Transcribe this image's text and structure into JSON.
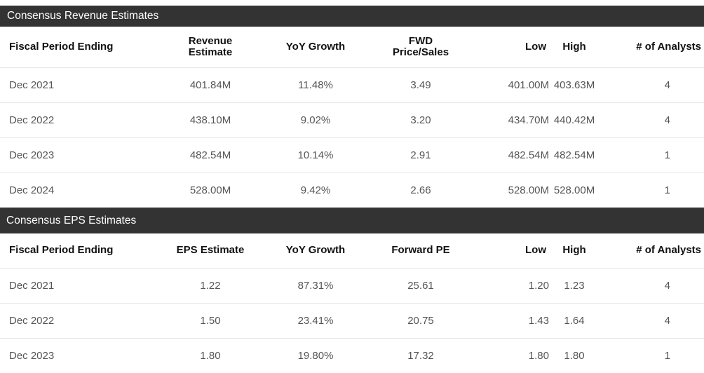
{
  "revenue": {
    "title": "Consensus Revenue Estimates",
    "headers": {
      "period": "Fiscal Period Ending",
      "estimate_line1": "Revenue",
      "estimate_line2": "Estimate",
      "yoy": "YoY Growth",
      "fwd_line1": "FWD",
      "fwd_line2": "Price/Sales",
      "low": "Low",
      "high": "High",
      "analysts": "# of Analysts"
    },
    "rows": [
      {
        "period": "Dec 2021",
        "estimate": "401.84M",
        "yoy": "11.48%",
        "fwd": "3.49",
        "low": "401.00M",
        "high": "403.63M",
        "analysts": "4"
      },
      {
        "period": "Dec 2022",
        "estimate": "438.10M",
        "yoy": "9.02%",
        "fwd": "3.20",
        "low": "434.70M",
        "high": "440.42M",
        "analysts": "4"
      },
      {
        "period": "Dec 2023",
        "estimate": "482.54M",
        "yoy": "10.14%",
        "fwd": "2.91",
        "low": "482.54M",
        "high": "482.54M",
        "analysts": "1"
      },
      {
        "period": "Dec 2024",
        "estimate": "528.00M",
        "yoy": "9.42%",
        "fwd": "2.66",
        "low": "528.00M",
        "high": "528.00M",
        "analysts": "1"
      }
    ]
  },
  "eps": {
    "title": "Consensus EPS Estimates",
    "headers": {
      "period": "Fiscal Period Ending",
      "estimate": "EPS Estimate",
      "yoy": "YoY Growth",
      "fwd": "Forward PE",
      "low": "Low",
      "high": "High",
      "analysts": "# of Analysts"
    },
    "rows": [
      {
        "period": "Dec 2021",
        "estimate": "1.22",
        "yoy": "87.31%",
        "fwd": "25.61",
        "low": "1.20",
        "high": "1.23",
        "analysts": "4"
      },
      {
        "period": "Dec 2022",
        "estimate": "1.50",
        "yoy": "23.41%",
        "fwd": "20.75",
        "low": "1.43",
        "high": "1.64",
        "analysts": "4"
      },
      {
        "period": "Dec 2023",
        "estimate": "1.80",
        "yoy": "19.80%",
        "fwd": "17.32",
        "low": "1.80",
        "high": "1.80",
        "analysts": "1"
      }
    ]
  }
}
